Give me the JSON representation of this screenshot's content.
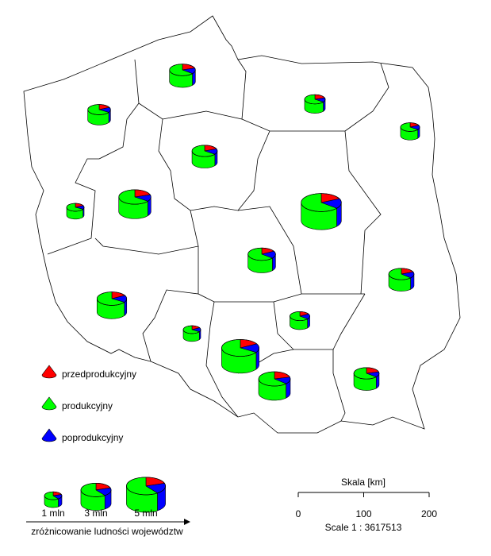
{
  "map": {
    "legend": [
      {
        "name": "przedprodukcyjny",
        "color": "#ff0000"
      },
      {
        "name": "produkcyjny",
        "color": "#00ff00"
      },
      {
        "name": "poprodukcyjny",
        "color": "#0000ff"
      }
    ],
    "regions": [
      {
        "population": 2.2,
        "shares": [
          20,
          64,
          16
        ]
      },
      {
        "population": 1.4,
        "shares": [
          20,
          65,
          15
        ]
      },
      {
        "population": 1.7,
        "shares": [
          18,
          66,
          16
        ]
      },
      {
        "population": 1.2,
        "shares": [
          18,
          65,
          17
        ]
      },
      {
        "population": 2.1,
        "shares": [
          19,
          65,
          16
        ]
      },
      {
        "population": 1.0,
        "shares": [
          18,
          67,
          15
        ]
      },
      {
        "population": 3.4,
        "shares": [
          20,
          65,
          15
        ]
      },
      {
        "population": 5.3,
        "shares": [
          18,
          64,
          18
        ]
      },
      {
        "population": 2.5,
        "shares": [
          17,
          64,
          19
        ]
      },
      {
        "population": 2.1,
        "shares": [
          19,
          63,
          18
        ]
      },
      {
        "population": 2.9,
        "shares": [
          17,
          66,
          17
        ]
      },
      {
        "population": 1.3,
        "shares": [
          17,
          64,
          19
        ]
      },
      {
        "population": 1.0,
        "shares": [
          17,
          66,
          17
        ]
      },
      {
        "population": 4.6,
        "shares": [
          17,
          66,
          17
        ]
      },
      {
        "population": 3.3,
        "shares": [
          21,
          63,
          16
        ]
      },
      {
        "population": 2.1,
        "shares": [
          21,
          64,
          15
        ]
      }
    ],
    "size_legend": {
      "title": "zróżnicowanie ludności województw",
      "shares": [
        20,
        60,
        20
      ],
      "sizes": [
        {
          "value": 1,
          "label": "1 mln"
        },
        {
          "value": 3,
          "label": "3 mln"
        },
        {
          "value": 5,
          "label": "5 mln"
        }
      ]
    },
    "scale": {
      "title": "Skala [km]",
      "ticks": [
        0,
        100,
        200
      ],
      "note": "Scale 1 : 3617513"
    }
  }
}
